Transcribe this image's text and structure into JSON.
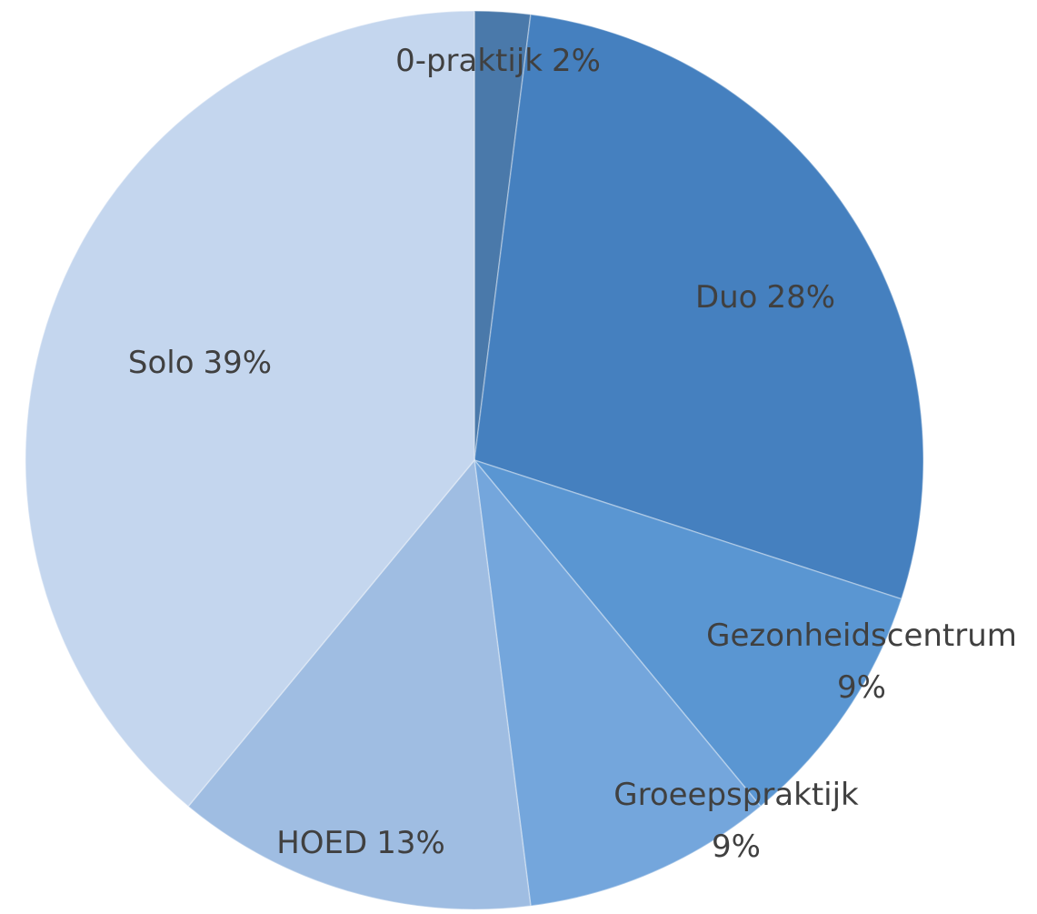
{
  "chart_data": {
    "type": "pie",
    "categories": [
      "0-praktijk",
      "Duo",
      "Gezonheidscentrum",
      "Groeepspraktijk",
      "HOED",
      "Solo"
    ],
    "values": [
      2,
      28,
      9,
      9,
      13,
      39
    ],
    "value_labels": [
      "2%",
      "28%",
      "9%",
      "9%",
      "13%",
      "39%"
    ],
    "colors": [
      "#4a79aa",
      "#4580bf",
      "#5a96d2",
      "#74a6dc",
      "#9fbde2",
      "#c4d6ee"
    ]
  }
}
